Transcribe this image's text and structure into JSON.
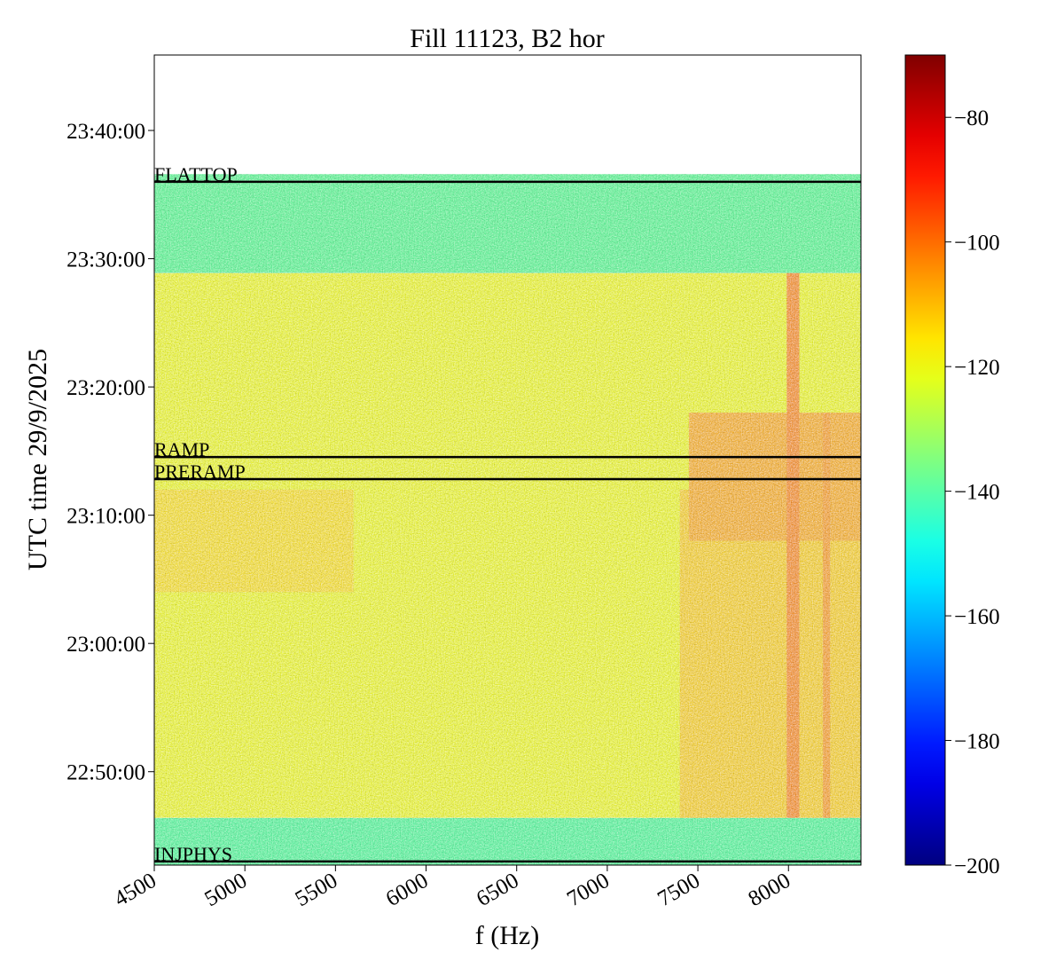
{
  "chart_data": {
    "type": "spectrogram",
    "title": "Fill 11123, B2 hor",
    "xlabel": "f (Hz)",
    "ylabel": "UTC time 29/9/2025",
    "xlim": [
      4500,
      8400
    ],
    "xticks": [
      4500,
      5000,
      5500,
      6000,
      6500,
      7000,
      7500,
      8000
    ],
    "ylim": [
      "22:42:43",
      "23:45:53"
    ],
    "yticks": [
      "22:50:00",
      "23:00:00",
      "23:10:00",
      "23:20:00",
      "23:30:00",
      "23:40:00"
    ],
    "colormap": "jet",
    "clim": [
      -200,
      -70
    ],
    "cticks": [
      {
        "value": -80,
        "label": "−80"
      },
      {
        "value": -100,
        "label": "−100"
      },
      {
        "value": -120,
        "label": "−120"
      },
      {
        "value": -140,
        "label": "−140"
      },
      {
        "value": -160,
        "label": "−160"
      },
      {
        "value": -180,
        "label": "−180"
      },
      {
        "value": -200,
        "label": "−200"
      }
    ],
    "regions": [
      {
        "f": [
          4500,
          8400
        ],
        "t": [
          "22:42:43",
          "22:46:24"
        ],
        "level": -140
      },
      {
        "f": [
          4500,
          8400
        ],
        "t": [
          "22:46:24",
          "23:28:53"
        ],
        "level": -120
      },
      {
        "f": [
          4500,
          8400
        ],
        "t": [
          "23:28:53",
          "23:36:36"
        ],
        "level": -139
      },
      {
        "f": [
          4500,
          5600
        ],
        "t": [
          "23:04:00",
          "23:12:00"
        ],
        "level": -116
      },
      {
        "f": [
          7400,
          8400
        ],
        "t": [
          "22:46:24",
          "23:12:00"
        ],
        "level": -114
      },
      {
        "f": [
          7450,
          8400
        ],
        "t": [
          "23:08:00",
          "23:18:00"
        ],
        "level": -110
      },
      {
        "f": [
          7990,
          8060
        ],
        "t": [
          "22:46:24",
          "23:28:53"
        ],
        "level": -106
      },
      {
        "f": [
          8190,
          8230
        ],
        "t": [
          "22:46:24",
          "23:18:00"
        ],
        "level": -108
      }
    ],
    "events": [
      {
        "label": "FLATTOP",
        "time": "23:36:00"
      },
      {
        "label": "RAMP",
        "time": "23:14:32"
      },
      {
        "label": "PRERAMP",
        "time": "23:12:49"
      },
      {
        "label": "INJPHYS",
        "time": "22:43:00"
      }
    ]
  }
}
